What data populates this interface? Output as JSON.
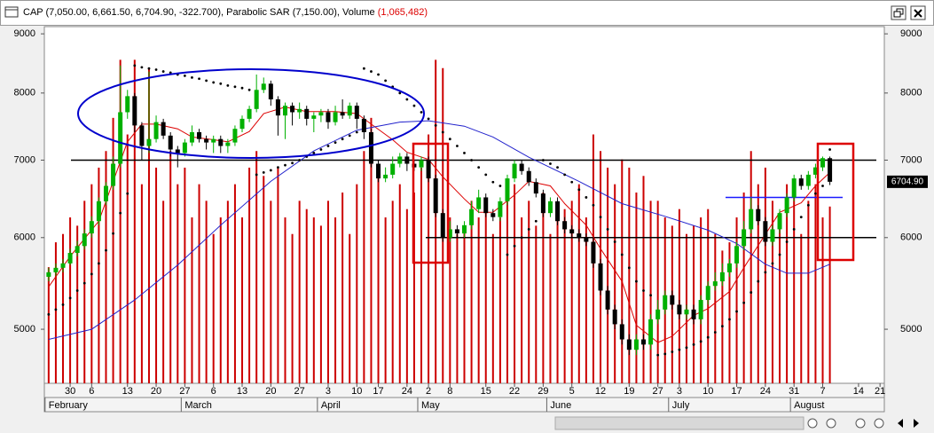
{
  "header": {
    "text": "CAP (7,050.00, 6,661.50, 6,704.90, -322.700), Parabolic SAR (7,150.00), Volume ",
    "volume": "(1,065,482)"
  },
  "chart_data": {
    "type": "candlestick",
    "open": [
      5550,
      5600,
      5650,
      5700,
      5820,
      5900,
      6050,
      6200,
      6450,
      6650,
      6950,
      7700,
      7950,
      7500,
      7200,
      7300,
      7550,
      7350,
      7150,
      7100,
      7250,
      7400,
      7300,
      7250,
      7300,
      7200,
      7250,
      7450,
      7600,
      7750,
      8050,
      8150,
      7900,
      7650,
      7800,
      7700,
      7750,
      7600,
      7650,
      7700,
      7550,
      7700,
      7650,
      7800,
      7600,
      7400,
      6950,
      6750,
      6800,
      6950,
      7050,
      6950,
      6900,
      7000,
      6750,
      6300,
      6000,
      6100,
      6050,
      6150,
      6350,
      6500,
      6300,
      6250,
      6450,
      6750,
      6950,
      6850,
      6700,
      6550,
      6300,
      6450,
      6200,
      6100,
      6050,
      6000,
      5950,
      5700,
      5400,
      5200,
      5050,
      4900,
      4800,
      4900,
      4850,
      5100,
      5200,
      5350,
      5250,
      5150,
      5200,
      5100,
      5300,
      5450,
      5500,
      5600,
      5700,
      5900,
      6100,
      6350,
      6200,
      5950,
      6100,
      6300,
      6500,
      6750,
      6650,
      6800,
      6900,
      7027.6
    ],
    "high": [
      5650,
      5700,
      5750,
      5870,
      5960,
      6100,
      6260,
      6500,
      6700,
      7050,
      8450,
      8050,
      8000,
      7550,
      8350,
      7650,
      7600,
      7400,
      7200,
      7300,
      7500,
      7450,
      7350,
      7350,
      7350,
      7300,
      7500,
      7650,
      7800,
      8300,
      8250,
      8200,
      7950,
      7850,
      7850,
      7850,
      7800,
      7700,
      7750,
      7750,
      7800,
      7900,
      7850,
      7850,
      7650,
      7450,
      7000,
      6900,
      7050,
      7100,
      7100,
      7000,
      7050,
      7050,
      6800,
      6350,
      6200,
      6150,
      6200,
      6450,
      6600,
      6550,
      6350,
      6500,
      6800,
      7000,
      7000,
      6900,
      6750,
      6600,
      6500,
      6500,
      6250,
      6150,
      6100,
      6050,
      6000,
      5750,
      5450,
      5250,
      5100,
      4950,
      4950,
      4950,
      5150,
      5300,
      5400,
      5400,
      5300,
      5250,
      5250,
      5350,
      5500,
      5600,
      5700,
      5750,
      5950,
      6200,
      6500,
      6400,
      6250,
      6150,
      6350,
      6550,
      6800,
      6800,
      6850,
      6950,
      7050,
      7050
    ],
    "low": [
      5500,
      5560,
      5600,
      5680,
      5780,
      5860,
      6000,
      6150,
      6400,
      6600,
      6900,
      7600,
      7400,
      7000,
      7100,
      7250,
      7300,
      7050,
      6900,
      7050,
      7200,
      7250,
      7150,
      7100,
      7100,
      7100,
      7200,
      7400,
      7550,
      7700,
      8000,
      7800,
      7350,
      7300,
      7500,
      7600,
      7500,
      7400,
      7550,
      7450,
      7500,
      7600,
      7600,
      7450,
      7300,
      6900,
      6700,
      6700,
      6750,
      6900,
      6850,
      6850,
      6850,
      6700,
      6250,
      5950,
      5950,
      6000,
      6000,
      6100,
      6300,
      6250,
      6200,
      6200,
      6400,
      6700,
      6800,
      6650,
      6500,
      6250,
      6250,
      6150,
      6050,
      6000,
      5950,
      5900,
      5650,
      5350,
      5150,
      5000,
      4850,
      4750,
      4750,
      4800,
      4800,
      5050,
      5150,
      5200,
      5100,
      5100,
      5050,
      5050,
      5250,
      5400,
      5450,
      5550,
      5650,
      5850,
      6050,
      6150,
      5900,
      5900,
      6050,
      6250,
      6450,
      6600,
      6600,
      6750,
      6850,
      6661.5
    ],
    "close": [
      5600,
      5650,
      5700,
      5820,
      5900,
      6050,
      6200,
      6450,
      6650,
      6950,
      7700,
      7950,
      7500,
      7200,
      7300,
      7550,
      7350,
      7150,
      7100,
      7250,
      7400,
      7300,
      7250,
      7300,
      7200,
      7250,
      7450,
      7600,
      7750,
      8050,
      8150,
      7900,
      7650,
      7800,
      7700,
      7750,
      7600,
      7650,
      7700,
      7550,
      7700,
      7650,
      7800,
      7600,
      7400,
      6950,
      6750,
      6800,
      6950,
      7050,
      6950,
      6900,
      7000,
      6750,
      6300,
      6000,
      6100,
      6050,
      6150,
      6350,
      6500,
      6300,
      6250,
      6450,
      6750,
      6950,
      6850,
      6700,
      6550,
      6300,
      6450,
      6200,
      6100,
      6050,
      6000,
      5950,
      5700,
      5400,
      5200,
      5050,
      4900,
      4800,
      4900,
      4850,
      5100,
      5200,
      5350,
      5250,
      5150,
      5200,
      5100,
      5300,
      5450,
      5500,
      5600,
      5700,
      5900,
      6100,
      6350,
      6200,
      5950,
      6100,
      6300,
      6500,
      6750,
      6650,
      6800,
      6900,
      7027.6,
      6704.9
    ],
    "volume": [
      700000,
      850000,
      900000,
      1000000,
      950000,
      1100000,
      1200000,
      1300000,
      1400000,
      1600000,
      1950000,
      1500000,
      1950000,
      1200000,
      1900000,
      1300000,
      1100000,
      1400000,
      1200000,
      1300000,
      1000000,
      1200000,
      1100000,
      900000,
      1000000,
      1100000,
      1200000,
      1000000,
      1300000,
      1400000,
      1250000,
      1100000,
      1300000,
      1000000,
      900000,
      1100000,
      1050000,
      1000000,
      950000,
      1100000,
      1000000,
      1150000,
      900000,
      1200000,
      1400000,
      1600000,
      1300000,
      1000000,
      1100000,
      1200000,
      1050000,
      1150000,
      1300000,
      1500000,
      1950000,
      1900000,
      1000000,
      900000,
      950000,
      1100000,
      1000000,
      1050000,
      900000,
      1000000,
      1150000,
      1200000,
      1000000,
      1100000,
      950000,
      1150000,
      900000,
      1000000,
      1050000,
      1100000,
      1200000,
      1000000,
      1500000,
      1400000,
      1300000,
      1200000,
      1350000,
      1300000,
      1150000,
      1250000,
      1100000,
      1100000,
      1000000,
      950000,
      1050000,
      900000,
      950000,
      1000000,
      1050000,
      900000,
      800000,
      850000,
      1000000,
      1150000,
      1400000,
      1200000,
      1300000,
      1100000,
      1000000,
      1200000,
      1150000,
      900000,
      1100000,
      1200000,
      1000000,
      1065482
    ],
    "sar": [
      5150,
      5200,
      5250,
      5320,
      5400,
      5480,
      5580,
      5700,
      5850,
      6050,
      6300,
      6550,
      8450,
      8420,
      8400,
      8380,
      8350,
      8330,
      8300,
      8280,
      8250,
      8230,
      8200,
      8170,
      8150,
      8120,
      8100,
      8080,
      8050,
      6800,
      6830,
      6860,
      6900,
      6930,
      6960,
      7000,
      7050,
      7100,
      7150,
      7200,
      7250,
      7300,
      7350,
      7400,
      8400,
      8350,
      8300,
      8200,
      8100,
      8000,
      7900,
      7800,
      7700,
      7600,
      7500,
      7400,
      7300,
      7200,
      7100,
      7000,
      6900,
      6800,
      6700,
      6650,
      5800,
      5900,
      6000,
      6100,
      6200,
      7000,
      6950,
      6900,
      6800,
      6700,
      6600,
      6500,
      6400,
      6250,
      6100,
      5950,
      5800,
      5650,
      5500,
      5400,
      5350,
      4750,
      4760,
      4780,
      4800,
      4820,
      4850,
      4880,
      4920,
      4970,
      5030,
      5100,
      5180,
      5270,
      5380,
      5500,
      5600,
      5700,
      5800,
      5950,
      6100,
      6250,
      6400,
      6550,
      6650,
      7150
    ],
    "lines": [
      {
        "color": "#dd0000",
        "x": [
          0,
          3,
          7,
          9,
          11,
          13,
          15,
          18,
          20,
          23,
          25,
          28,
          30,
          33,
          36,
          40,
          43,
          45,
          48,
          50,
          53,
          55,
          58,
          60,
          62,
          65,
          67,
          70,
          72,
          75,
          77,
          80,
          82,
          85,
          87,
          90,
          92,
          95,
          97,
          100,
          102,
          105,
          107,
          109
        ],
        "values": [
          5440,
          5780,
          6200,
          6710,
          7260,
          7520,
          7520,
          7450,
          7330,
          7290,
          7260,
          7410,
          7680,
          7780,
          7710,
          7710,
          7680,
          7520,
          7290,
          7110,
          7010,
          6770,
          6480,
          6310,
          6310,
          6530,
          6710,
          6650,
          6420,
          6150,
          5870,
          5500,
          5040,
          4870,
          4930,
          5140,
          5210,
          5390,
          5650,
          6040,
          6310,
          6430,
          6650,
          6830
        ]
      },
      {
        "color": "#2222cc",
        "x": [
          0,
          6,
          12,
          18,
          24,
          31,
          37,
          43,
          49,
          53,
          58,
          62,
          67,
          74,
          80,
          86,
          92,
          96,
          100,
          103,
          106,
          109
        ],
        "values": [
          4900,
          5000,
          5300,
          5680,
          6150,
          6710,
          7130,
          7430,
          7550,
          7570,
          7490,
          7330,
          7040,
          6710,
          6420,
          6260,
          6090,
          5930,
          5690,
          5590,
          5590,
          5690
        ]
      }
    ],
    "hlines": [
      {
        "value": 7000,
        "color": "#000000"
      },
      {
        "value": 6000,
        "color": "#000000"
      },
      {
        "value": 6500,
        "color": "#1a1aff"
      }
    ],
    "colors": {
      "up": "#00b000",
      "down": "#000000",
      "volume": "#cc0000",
      "sar": "#000000"
    },
    "log_scale": true,
    "ylim": [
      4490,
      9130
    ],
    "yticks": [
      5000,
      6000,
      7000,
      8000,
      9000
    ],
    "vlim": [
      0,
      2150000
    ],
    "xlim": [
      -0.6,
      116.6
    ],
    "xticks": [
      {
        "value": 3,
        "label": "30"
      },
      {
        "value": 6,
        "label": "6"
      },
      {
        "value": 11,
        "label": "13"
      },
      {
        "value": 15,
        "label": "20"
      },
      {
        "value": 19,
        "label": "27"
      },
      {
        "value": 23,
        "label": "6"
      },
      {
        "value": 27,
        "label": "13"
      },
      {
        "value": 31,
        "label": "20"
      },
      {
        "value": 35,
        "label": "27"
      },
      {
        "value": 39,
        "label": "3"
      },
      {
        "value": 43,
        "label": "10"
      },
      {
        "value": 46,
        "label": "17"
      },
      {
        "value": 50,
        "label": "24"
      },
      {
        "value": 53,
        "label": "2"
      },
      {
        "value": 56,
        "label": "8"
      },
      {
        "value": 61,
        "label": "15"
      },
      {
        "value": 65,
        "label": "22"
      },
      {
        "value": 69,
        "label": "29"
      },
      {
        "value": 73,
        "label": "5"
      },
      {
        "value": 77,
        "label": "12"
      },
      {
        "value": 81,
        "label": "19"
      },
      {
        "value": 85,
        "label": "27"
      },
      {
        "value": 88,
        "label": "3"
      },
      {
        "value": 92,
        "label": "10"
      },
      {
        "value": 96,
        "label": "17"
      },
      {
        "value": 100,
        "label": "24"
      },
      {
        "value": 104,
        "label": "31"
      },
      {
        "value": 108,
        "label": "7"
      },
      {
        "value": 113,
        "label": "14"
      },
      {
        "value": 116,
        "label": "21"
      }
    ],
    "months": [
      {
        "value": 0,
        "label": "February"
      },
      {
        "value": 19,
        "label": "March"
      },
      {
        "value": 38,
        "label": "April"
      },
      {
        "value": 52,
        "label": "May"
      },
      {
        "value": 70,
        "label": "June"
      },
      {
        "value": 87,
        "label": "July"
      },
      {
        "value": 104,
        "label": "August"
      }
    ],
    "last_price": {
      "value": 6704.9,
      "label": "6704.90"
    }
  }
}
